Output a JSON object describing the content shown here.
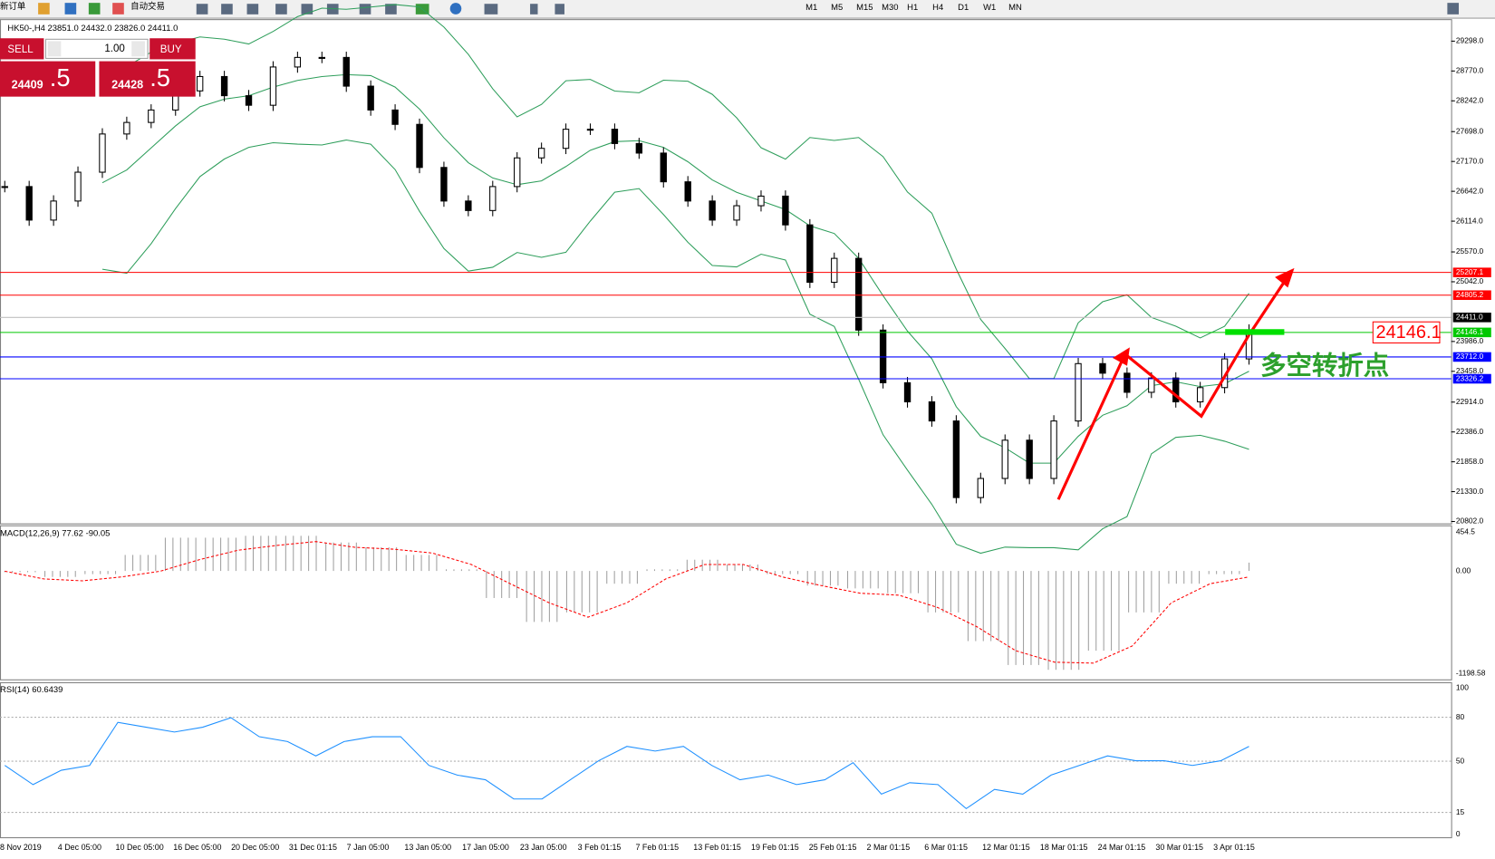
{
  "toolbar": {
    "items": [
      "新订单",
      "自动交易"
    ],
    "timeframes": [
      "M1",
      "M5",
      "M15",
      "M30",
      "H1",
      "H4",
      "D1",
      "W1",
      "MN"
    ]
  },
  "one_click": {
    "sell": "SELL",
    "lots": "1.00",
    "buy": "BUY",
    "bid_big": "24409",
    "bid_small": ".5",
    "ask_big": "24428",
    "ask_small": ".5"
  },
  "chart_data": [
    {
      "type": "candlestick",
      "title": "HK50-,H4  23851.0 24432.0 23826.0 24411.0",
      "closes": [
        26726,
        26133,
        26470,
        26980,
        27656,
        27860,
        28080,
        28418,
        28672,
        28333,
        28164,
        28841,
        29010,
        29010,
        28502,
        28080,
        27826,
        27064,
        26470,
        26302,
        26726,
        27233,
        27402,
        27740,
        27740,
        27487,
        27318,
        26810,
        26470,
        26133,
        26387,
        26557,
        26048,
        25033,
        25456,
        24187,
        23256,
        22918,
        22580,
        21225,
        21563,
        22240,
        21563,
        22580,
        23594,
        23425,
        23087,
        23340,
        22918,
        23170,
        23678,
        24187
      ],
      "ylim": [
        20802,
        29298
      ],
      "yticks": [
        {
          "value": 29298,
          "label": "29298.0"
        },
        {
          "value": 28770,
          "label": "28770.0"
        },
        {
          "value": 28242,
          "label": "28242.0"
        },
        {
          "value": 27698,
          "label": "27698.0"
        },
        {
          "value": 27170,
          "label": "27170.0"
        },
        {
          "value": 26642,
          "label": "26642.0"
        },
        {
          "value": 26114,
          "label": "26114.0"
        },
        {
          "value": 25570,
          "label": "25570.0"
        },
        {
          "value": 25042,
          "label": "25042.0"
        },
        {
          "value": 23986,
          "label": "23986.0"
        },
        {
          "value": 23458,
          "label": "23458.0"
        },
        {
          "value": 22914,
          "label": "22914.0"
        },
        {
          "value": 22386,
          "label": "22386.0"
        },
        {
          "value": 21858,
          "label": "21858.0"
        },
        {
          "value": 21330,
          "label": "21330.0"
        },
        {
          "value": 20802,
          "label": "20802.0"
        }
      ],
      "levels": [
        {
          "value": 25207.1,
          "label": "25207.1",
          "color": "#ff0000"
        },
        {
          "value": 24805.2,
          "label": "24805.2",
          "color": "#ff0000"
        },
        {
          "value": 24411,
          "label": "24411.0",
          "color": "#000000"
        },
        {
          "value": 24146.1,
          "label": "24146.1",
          "color": "#00c800"
        },
        {
          "value": 23712,
          "label": "23712.0",
          "color": "#0000ff"
        },
        {
          "value": 23326.2,
          "label": "23326.2",
          "color": "#0000ff"
        }
      ],
      "band_color": "#2e9e5b",
      "marker_label": "24146.1",
      "annotation": "多空转折点",
      "x_labels": [
        "8 Nov 2019",
        "4 Dec 05:00",
        "10 Dec 05:00",
        "16 Dec 05:00",
        "20 Dec 05:00",
        "31 Dec 01:15",
        "7 Jan 05:00",
        "13 Jan 05:00",
        "17 Jan 05:00",
        "23 Jan 05:00",
        "3 Feb 01:15",
        "7 Feb 01:15",
        "13 Feb 01:15",
        "19 Feb 01:15",
        "25 Feb 01:15",
        "2 Mar 01:15",
        "6 Mar 01:15",
        "12 Mar 01:15",
        "18 Mar 01:15",
        "24 Mar 01:15",
        "30 Mar 01:15",
        "3 Apr 01:15"
      ]
    },
    {
      "type": "macd",
      "title": "MACD(12,26,9) 77.62 -90.05",
      "histogram": [
        -15,
        -70,
        -37,
        187,
        388,
        388,
        410,
        410,
        332,
        276,
        187,
        19,
        -316,
        -595,
        -484,
        -149,
        19,
        131,
        75,
        -37,
        -171,
        -204,
        -260,
        -484,
        -819,
        -1098,
        -1154,
        -931,
        -484,
        -149,
        -37,
        97
      ],
      "signal": [
        -3,
        -93,
        -115,
        -70,
        -3,
        131,
        242,
        298,
        343,
        276,
        254,
        209,
        75,
        -149,
        -372,
        -540,
        -372,
        -93,
        75,
        75,
        -70,
        -171,
        -260,
        -283,
        -428,
        -651,
        -931,
        -1065,
        -1076,
        -875,
        -372,
        -149,
        -70
      ],
      "histogram_color": "#a0a0a0",
      "signal_color": "#ff0000",
      "ylim": [
        -1198.58,
        454.5
      ],
      "yticks": [
        454.5,
        {
          "value": 0,
          "label": "0.00"
        },
        -1198.58
      ]
    },
    {
      "type": "rsi",
      "title": "RSI(14) 60.6439",
      "values": [
        47.1,
        34.0,
        43.8,
        47.1,
        76.5,
        73.2,
        69.9,
        73.2,
        79.7,
        66.7,
        63.4,
        53.6,
        63.4,
        66.7,
        66.7,
        47.1,
        40.5,
        37.3,
        24.2,
        24.2,
        37.3,
        50.3,
        60.1,
        56.9,
        60.1,
        47.1,
        37.3,
        40.5,
        34.0,
        37.3,
        49.0,
        27.5,
        35.3,
        34.0,
        17.6,
        30.7,
        27.5,
        40.5,
        47.1,
        53.6,
        50.3,
        50.3,
        47.1,
        50.3,
        60.1
      ],
      "color": "#1e90ff",
      "ylim": [
        0,
        100
      ],
      "yticks": [
        100,
        80,
        50,
        15,
        0
      ]
    }
  ]
}
